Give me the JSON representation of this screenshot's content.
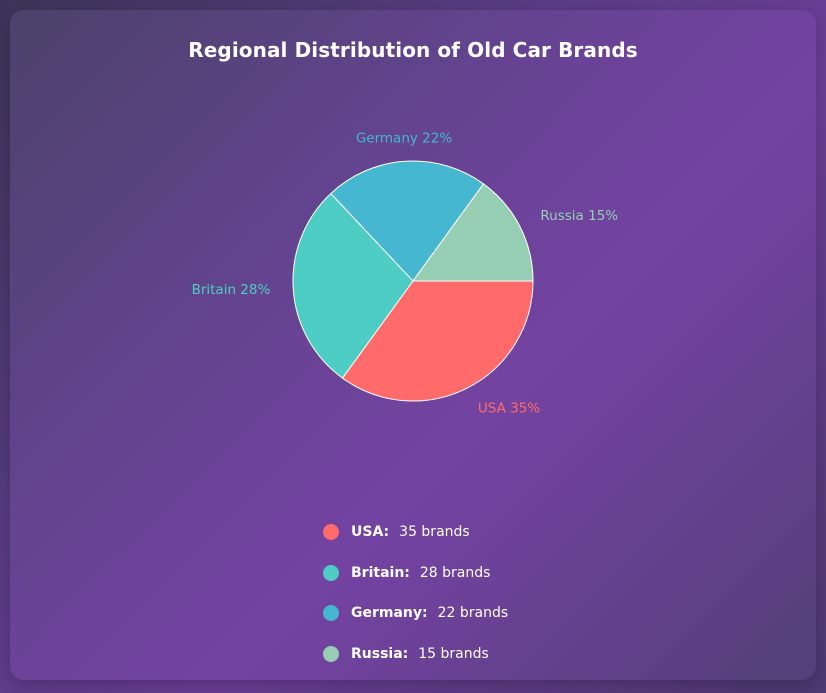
{
  "title": "Regional Distribution of Old Car Brands",
  "chart_data": {
    "type": "pie",
    "categories": [
      "USA",
      "Britain",
      "Germany",
      "Russia"
    ],
    "values": [
      35,
      28,
      22,
      15
    ],
    "percent_labels": [
      "USA 35%",
      "Britain 28%",
      "Germany 22%",
      "Russia 15%"
    ],
    "colors": [
      "#ff6b6b",
      "#4ecdc4",
      "#45b7d1",
      "#96ceb4"
    ],
    "title": "Regional Distribution of Old Car Brands",
    "legend_position": "bottom"
  },
  "legend": [
    {
      "name": "USA:",
      "value": "35 brands",
      "color": "#ff6b6b"
    },
    {
      "name": "Britain:",
      "value": "28 brands",
      "color": "#4ecdc4"
    },
    {
      "name": "Germany:",
      "value": "22 brands",
      "color": "#45b7d1"
    },
    {
      "name": "Russia:",
      "value": "15 brands",
      "color": "#96ceb4"
    }
  ]
}
